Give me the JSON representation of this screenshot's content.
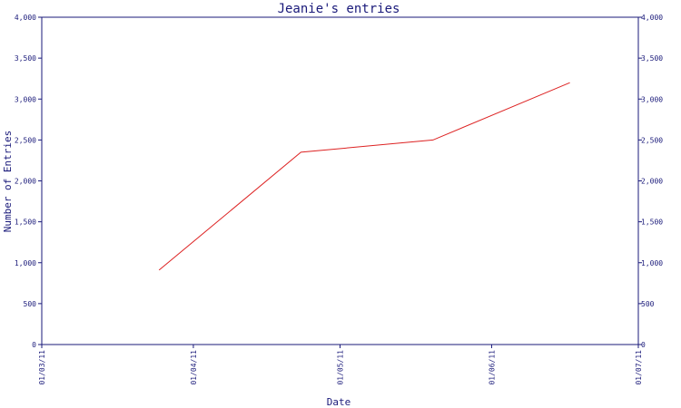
{
  "chart_data": {
    "type": "line",
    "title": "Jeanie's entries",
    "xlabel": "Date",
    "ylabel": "Number of Entries",
    "ylim": [
      0,
      4000
    ],
    "xlim": [
      "2011-03-01",
      "2011-07-01"
    ],
    "y_ticks": [
      0,
      500,
      1000,
      1500,
      2000,
      2500,
      3000,
      3500,
      4000
    ],
    "y_tick_labels": [
      "0",
      "500",
      "1,000",
      "1,500",
      "2,000",
      "2,500",
      "3,000",
      "3,500",
      "4,000"
    ],
    "y_axis_right": true,
    "x_ticks": [
      "2011-03-01",
      "2011-04-01",
      "2011-05-01",
      "2011-06-01",
      "2011-07-01"
    ],
    "x_tick_labels": [
      "01/03/11",
      "01/04/11",
      "01/05/11",
      "01/06/11",
      "01/07/11"
    ],
    "grid": false,
    "series": [
      {
        "color": "#dd2222",
        "points": [
          {
            "x": "2011-03-25",
            "y": 910
          },
          {
            "x": "2011-04-23",
            "y": 2350
          },
          {
            "x": "2011-05-20",
            "y": 2500
          },
          {
            "x": "2011-06-17",
            "y": 3200
          }
        ]
      }
    ],
    "colors": {
      "axis": "#1a1a7a",
      "text": "#1a1a7a",
      "line": "#dd2222"
    }
  }
}
